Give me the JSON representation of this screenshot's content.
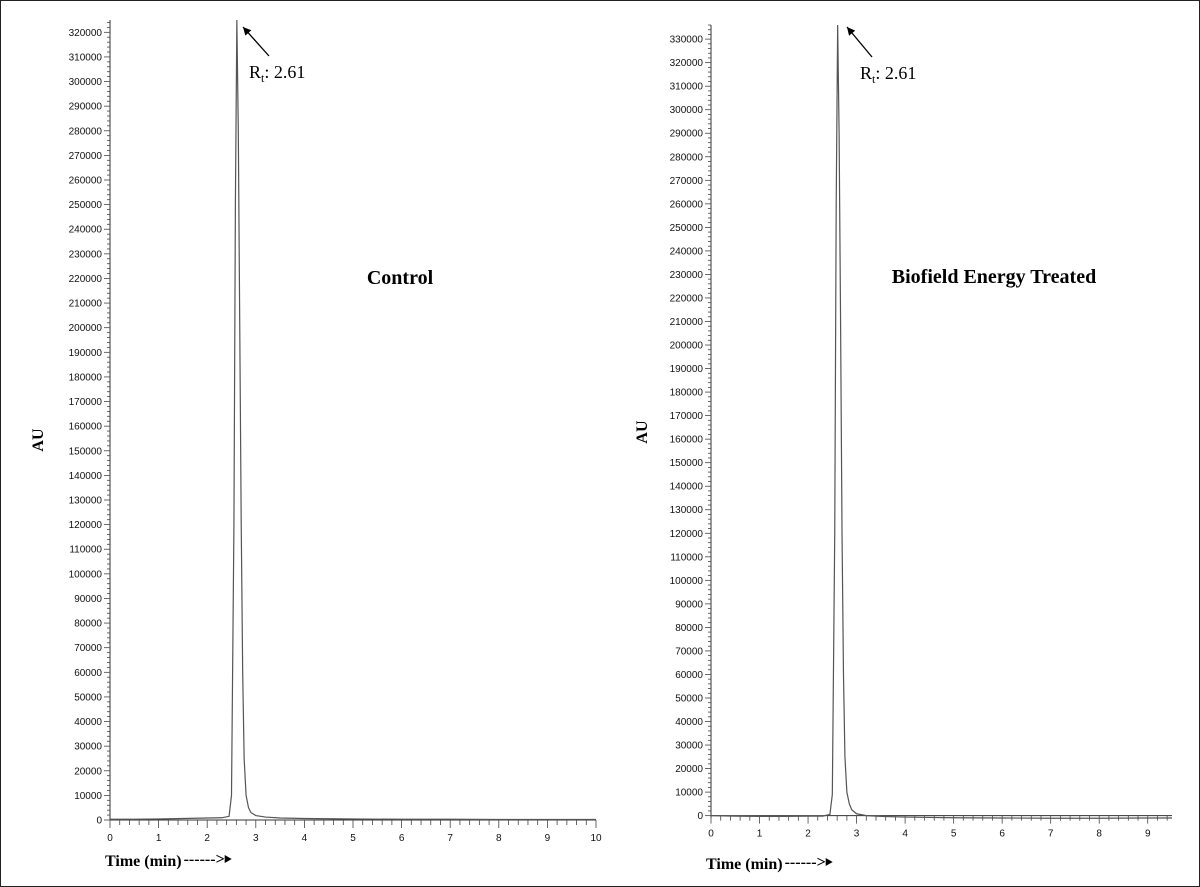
{
  "chart_data": [
    {
      "type": "line",
      "title": "Control",
      "xlabel": "Time (min)",
      "xlabel_arrow": "------>",
      "ylabel": "AU",
      "xlim": [
        0,
        10
      ],
      "ylim": [
        0,
        325000
      ],
      "x_ticks": [
        0,
        1,
        2,
        3,
        4,
        5,
        6,
        7,
        8,
        9,
        10
      ],
      "y_ticks": [
        0,
        10000,
        20000,
        30000,
        40000,
        50000,
        60000,
        70000,
        80000,
        90000,
        100000,
        110000,
        120000,
        130000,
        140000,
        150000,
        160000,
        170000,
        180000,
        190000,
        200000,
        210000,
        220000,
        230000,
        240000,
        250000,
        260000,
        270000,
        280000,
        290000,
        300000,
        310000,
        320000
      ],
      "grid": false,
      "peak": {
        "label_main": "R",
        "label_sub": "t",
        "label_value": ": 2.61",
        "x": 2.61,
        "y": 325000
      },
      "series": [
        {
          "x": [
            0,
            0.5,
            1.0,
            1.5,
            2.0,
            2.3,
            2.45,
            2.5,
            2.55,
            2.58,
            2.61,
            2.64,
            2.67,
            2.7,
            2.73,
            2.76,
            2.8,
            2.85,
            2.9,
            3.0,
            3.2,
            3.5,
            4.0,
            5.0,
            6.0,
            7.0,
            8.0,
            9.0,
            10.0
          ],
          "y": [
            300,
            300,
            400,
            600,
            800,
            900,
            1500,
            10000,
            120000,
            250000,
            325000,
            280000,
            200000,
            120000,
            60000,
            25000,
            10000,
            5000,
            3000,
            1800,
            1200,
            800,
            600,
            400,
            300,
            300,
            200,
            200,
            200
          ]
        }
      ]
    },
    {
      "type": "line",
      "title": "Biofield Energy Treated",
      "xlabel": "Time (min)",
      "xlabel_arrow": "------>",
      "ylabel": "AU",
      "xlim": [
        0,
        9.5
      ],
      "ylim": [
        -1000,
        336000
      ],
      "x_ticks": [
        0,
        1,
        2,
        3,
        4,
        5,
        6,
        7,
        8,
        9
      ],
      "y_ticks": [
        0,
        10000,
        20000,
        30000,
        40000,
        50000,
        60000,
        70000,
        80000,
        90000,
        100000,
        110000,
        120000,
        130000,
        140000,
        150000,
        160000,
        170000,
        180000,
        190000,
        200000,
        210000,
        220000,
        230000,
        240000,
        250000,
        260000,
        270000,
        280000,
        290000,
        300000,
        310000,
        320000,
        330000
      ],
      "grid": false,
      "peak": {
        "label_main": "R",
        "label_sub": "t",
        "label_value": ": 2.61",
        "x": 2.61,
        "y": 336000
      },
      "series": [
        {
          "x": [
            0,
            0.5,
            1.0,
            1.5,
            2.0,
            2.3,
            2.45,
            2.5,
            2.55,
            2.58,
            2.61,
            2.64,
            2.67,
            2.7,
            2.73,
            2.76,
            2.8,
            2.85,
            2.9,
            3.0,
            3.2,
            3.5,
            4.0,
            5.0,
            6.0,
            7.0,
            8.0,
            9.0,
            9.5
          ],
          "y": [
            0,
            -200,
            -300,
            -300,
            -200,
            -200,
            500,
            9000,
            120000,
            260000,
            336000,
            290000,
            210000,
            120000,
            60000,
            25000,
            10000,
            5000,
            2500,
            800,
            0,
            -300,
            -600,
            -900,
            -1000,
            -1100,
            -1100,
            -1000,
            -1000
          ]
        }
      ]
    }
  ]
}
